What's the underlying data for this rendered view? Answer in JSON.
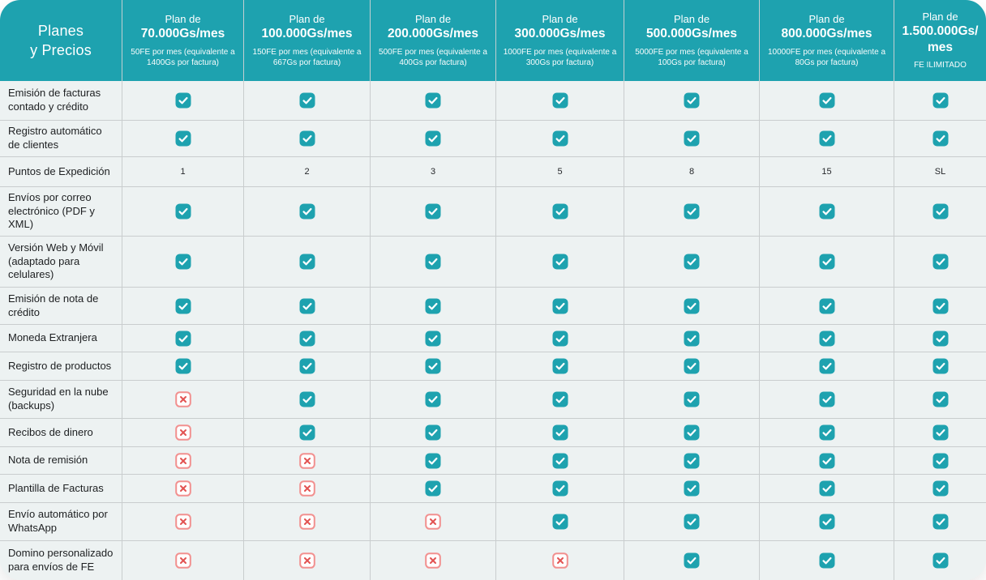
{
  "table": {
    "corner": {
      "line1": "Planes",
      "line2": "y Precios"
    },
    "plans": [
      {
        "prefix": "Plan de",
        "price": "70.000Gs/mes",
        "subtitle": "50FE por mes (equivalente a 1400Gs por factura)"
      },
      {
        "prefix": "Plan de",
        "price": "100.000Gs/mes",
        "subtitle": "150FE por mes (equivalente a 667Gs por factura)"
      },
      {
        "prefix": "Plan de",
        "price": "200.000Gs/mes",
        "subtitle": "500FE por mes (equivalente a 400Gs por factura)"
      },
      {
        "prefix": "Plan de",
        "price": "300.000Gs/mes",
        "subtitle": "1000FE por mes (equivalente a 300Gs por factura)"
      },
      {
        "prefix": "Plan de",
        "price": "500.000Gs/mes",
        "subtitle": "5000FE por mes (equivalente a 100Gs por factura)"
      },
      {
        "prefix": "Plan de",
        "price": "800.000Gs/mes",
        "subtitle": "10000FE por mes (equivalente a 80Gs por factura)"
      },
      {
        "prefix": "Plan de",
        "price": "1.500.000Gs/mes",
        "subtitle": "FE ILIMITADO"
      }
    ],
    "features": [
      {
        "label": "Emisión de facturas contado y crédito",
        "values": [
          "check",
          "check",
          "check",
          "check",
          "check",
          "check",
          "check"
        ]
      },
      {
        "label": "Registro automático de clientes",
        "values": [
          "check",
          "check",
          "check",
          "check",
          "check",
          "check",
          "check"
        ]
      },
      {
        "label": "Puntos de Expedición",
        "values": [
          "1",
          "2",
          "3",
          "5",
          "8",
          "15",
          "SL"
        ]
      },
      {
        "label": "Envíos por correo electrónico (PDF y XML)",
        "values": [
          "check",
          "check",
          "check",
          "check",
          "check",
          "check",
          "check"
        ]
      },
      {
        "label": "Versión Web y Móvil (adaptado para celulares)",
        "values": [
          "check",
          "check",
          "check",
          "check",
          "check",
          "check",
          "check"
        ]
      },
      {
        "label": "Emisión de nota de crédito",
        "values": [
          "check",
          "check",
          "check",
          "check",
          "check",
          "check",
          "check"
        ]
      },
      {
        "label": "Moneda Extranjera",
        "values": [
          "check",
          "check",
          "check",
          "check",
          "check",
          "check",
          "check"
        ]
      },
      {
        "label": "Registro de productos",
        "values": [
          "check",
          "check",
          "check",
          "check",
          "check",
          "check",
          "check"
        ]
      },
      {
        "label": "Seguridad en la nube (backups)",
        "values": [
          "cross",
          "check",
          "check",
          "check",
          "check",
          "check",
          "check"
        ]
      },
      {
        "label": "Recibos de dinero",
        "values": [
          "cross",
          "check",
          "check",
          "check",
          "check",
          "check",
          "check"
        ]
      },
      {
        "label": "Nota de remisión",
        "values": [
          "cross",
          "cross",
          "check",
          "check",
          "check",
          "check",
          "check"
        ]
      },
      {
        "label": "Plantilla de Facturas",
        "values": [
          "cross",
          "cross",
          "check",
          "check",
          "check",
          "check",
          "check"
        ]
      },
      {
        "label": "Envío automático por WhatsApp",
        "values": [
          "cross",
          "cross",
          "cross",
          "check",
          "check",
          "check",
          "check"
        ]
      },
      {
        "label": "Domino personalizado para envíos de FE",
        "values": [
          "cross",
          "cross",
          "cross",
          "cross",
          "check",
          "check",
          "check"
        ]
      }
    ],
    "icons": {
      "check": {
        "name": "check-icon",
        "glyph": "✓"
      },
      "cross": {
        "name": "cross-icon",
        "glyph": "✕"
      }
    },
    "colors": {
      "teal": "#1EA2AF",
      "row_background": "#EDF2F2",
      "grid_border": "#C9CDCE",
      "header_text": "#FFFFFF",
      "label_text": "#1D1F21",
      "check_fill": "#1EA2AF",
      "cross_border": "#F2908F",
      "cross_x": "#E25251"
    }
  }
}
